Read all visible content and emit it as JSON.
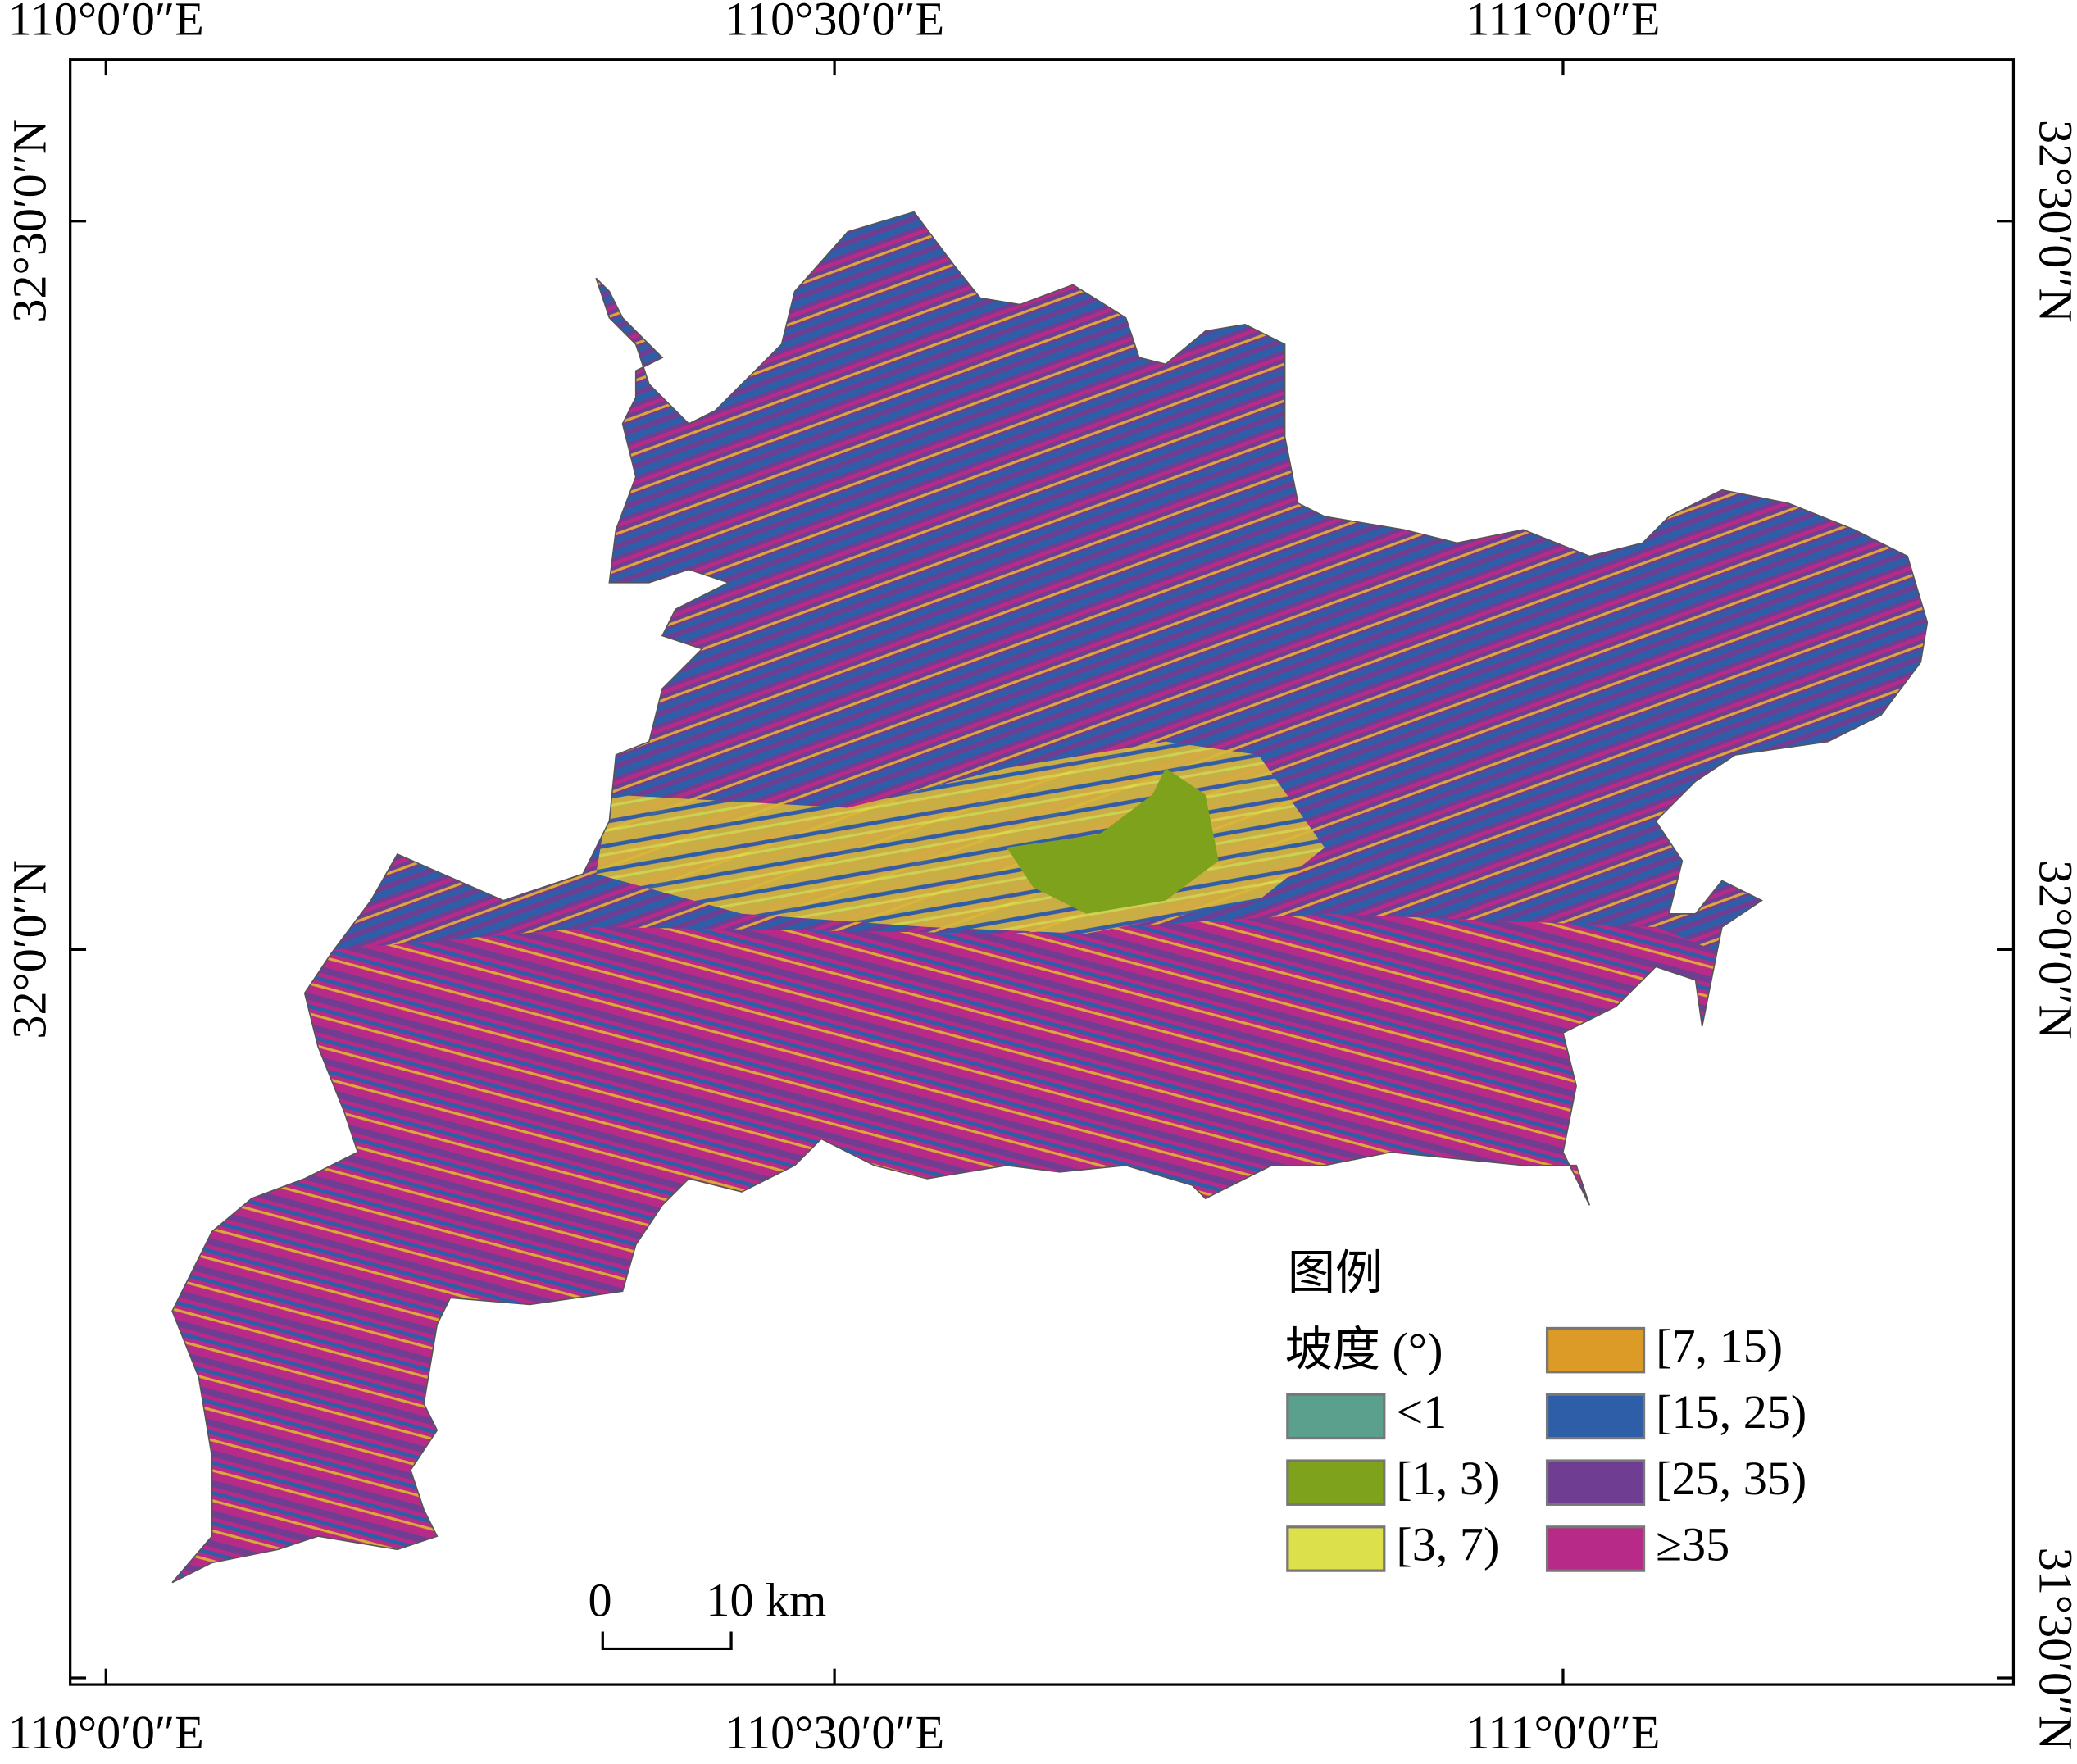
{
  "axes": {
    "top": [
      "110°0′0″E",
      "110°30′0″E",
      "111°0′0″E"
    ],
    "bottom": [
      "110°0′0″E",
      "110°30′0″E",
      "111°0′0″E"
    ],
    "left": [
      "32°30′0″N",
      "32°0′0″N"
    ],
    "right": [
      "32°30′0″N",
      "32°0′0″N",
      "31°30′0″N"
    ]
  },
  "legend": {
    "title": "图例",
    "subtitle": "坡度 (°)",
    "items": [
      {
        "label": "<1",
        "color": "#5aa08c"
      },
      {
        "label": "[1, 3)",
        "color": "#7ea21c"
      },
      {
        "label": "[3, 7)",
        "color": "#dce04a"
      },
      {
        "label": "[7, 15)",
        "color": "#dc9a26"
      },
      {
        "label": "[15, 25)",
        "color": "#2e5ea8"
      },
      {
        "label": "[25, 35)",
        "color": "#6f3e93"
      },
      {
        "label": "≥35",
        "color": "#b82a87"
      }
    ]
  },
  "scale_bar": {
    "start": "0",
    "end": "10 km"
  }
}
